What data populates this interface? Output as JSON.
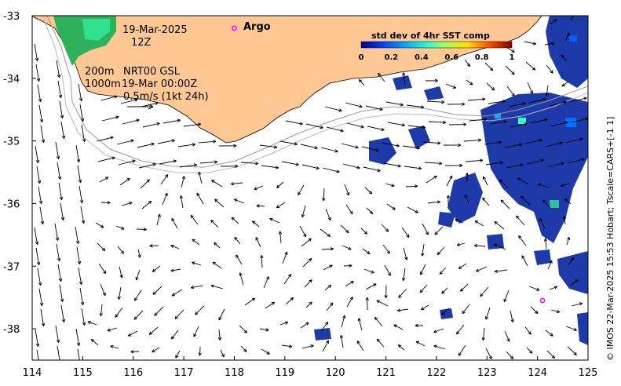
{
  "map": {
    "lon_range": [
      114,
      125
    ],
    "lat_range": [
      -38.5,
      -33
    ],
    "x_ticks": [
      "114",
      "115",
      "116",
      "117",
      "118",
      "119",
      "120",
      "121",
      "122",
      "123",
      "124",
      "125"
    ],
    "y_ticks": [
      "-33",
      "-34",
      "-35",
      "-36",
      "-37",
      "-38"
    ],
    "land_color": "#fdc894",
    "sea_color": "#ffffff",
    "sst_std_color": "#1d3aa8"
  },
  "annotations": {
    "date": "19-Mar-2025",
    "hour": "12Z",
    "isobath_200": "200m",
    "source": "NRT00 GSL",
    "isobath_1000": "1000m",
    "source_time": "19-Mar 00:00Z",
    "scale_label": "0.5m/s (1kt 24h)"
  },
  "argo": {
    "label": "Argo",
    "color": "#ff00ff",
    "floats": [
      {
        "lon": 118.0,
        "lat": -33.2
      },
      {
        "lon": 124.1,
        "lat": -37.55
      }
    ]
  },
  "colorbar": {
    "title": "std dev of 4hr SST comp",
    "ticks": [
      "0",
      "0.2",
      "0.4",
      "0.6",
      "0.8",
      "1"
    ],
    "range": [
      0,
      1
    ]
  },
  "credit": "© IMOS 22-Mar-2025 15:53 Hobart; Tscale=CARS+[-1 1]"
}
